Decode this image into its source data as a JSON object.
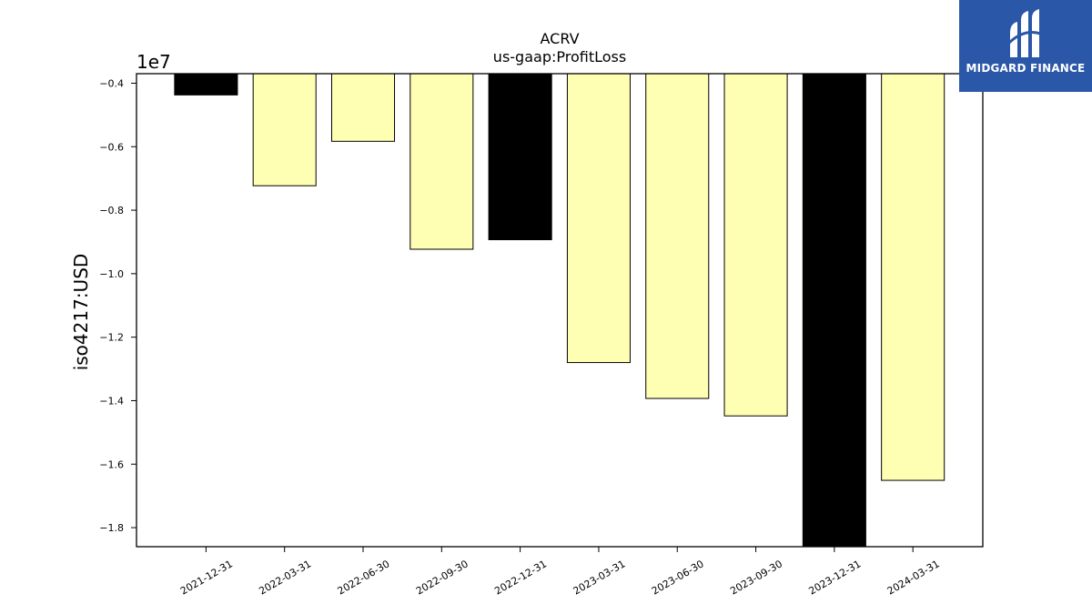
{
  "chart_data": {
    "type": "bar",
    "title": "ACRV",
    "subtitle": "us-gaap:ProfitLoss",
    "xlabel": "",
    "ylabel": "iso4217:USD",
    "offset_text": "1e7",
    "categories": [
      "2021-12-31",
      "2022-03-31",
      "2022-06-30",
      "2022-09-30",
      "2022-12-31",
      "2023-03-31",
      "2023-06-30",
      "2023-09-30",
      "2023-12-31",
      "2024-03-31"
    ],
    "values": [
      -4370000,
      -7230000,
      -5830000,
      -9230000,
      -8930000,
      -12800000,
      -13930000,
      -14480000,
      -18600000,
      -16510000
    ],
    "bar_colors": [
      "#000000",
      "#ffffb3",
      "#ffffb3",
      "#ffffb3",
      "#000000",
      "#ffffb3",
      "#ffffb3",
      "#ffffb3",
      "#000000",
      "#ffffb3"
    ],
    "ylim": [
      -18600000,
      -3700000
    ],
    "yticks": [
      -4000000,
      -6000000,
      -8000000,
      -10000000,
      -12000000,
      -14000000,
      -16000000,
      -18000000
    ],
    "ytick_labels": [
      "−0.4",
      "−0.6",
      "−0.8",
      "−1.0",
      "−1.2",
      "−1.4",
      "−1.6",
      "−1.8"
    ],
    "grid": false
  },
  "logo": {
    "text": "MIDGARD FINANCE",
    "color": "#2b57a8"
  }
}
